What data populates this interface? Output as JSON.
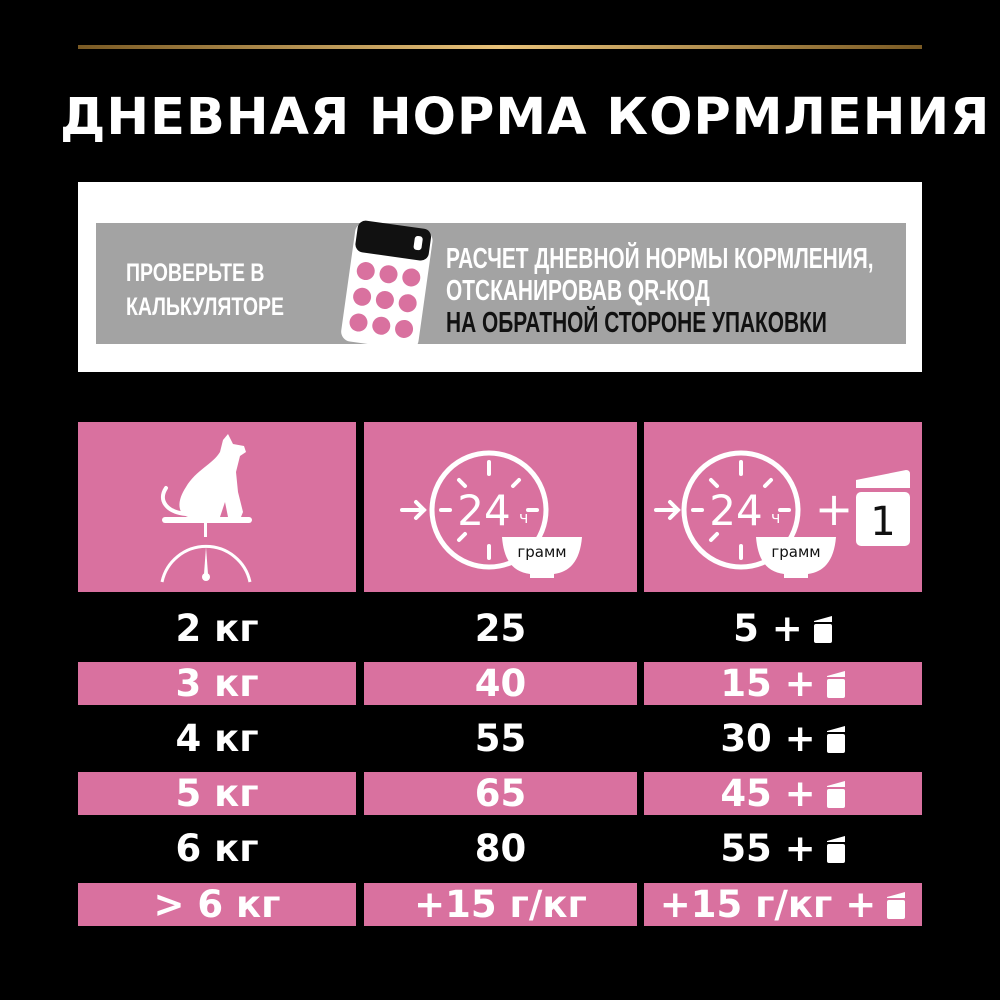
{
  "title": "ДНЕВНАЯ НОРМА КОРМЛЕНИЯ",
  "banner": {
    "left_line1": "ПРОВЕРЬТЕ В",
    "left_line2": "КАЛЬКУЛЯТОРЕ",
    "right_line1": "РАСЧЕТ ДНЕВНОЙ НОРМЫ КОРМЛЕНИЯ,",
    "right_line2": "ОТСКАНИРОВАВ QR-КОД",
    "right_line3": "НА ОБРАТНОЙ СТОРОНЕ УПАКОВКИ",
    "icon": "calculator-icon"
  },
  "header": {
    "col1_icon": "cat-on-scale-icon",
    "col2": {
      "hours": "24",
      "hours_unit": "ч",
      "bowl_label": "грамм"
    },
    "col3": {
      "hours": "24",
      "hours_unit": "ч",
      "bowl_label": "грамм",
      "plus": "+",
      "pouch_count": "1"
    }
  },
  "colors": {
    "pink": "#d9719f",
    "background": "#000000",
    "banner_gray": "#a3a3a3"
  },
  "rows": [
    {
      "weight": "2 кг",
      "dry": "25",
      "mixed": "5 +"
    },
    {
      "weight": "3 кг",
      "dry": "40",
      "mixed": "15 +"
    },
    {
      "weight": "4 кг",
      "dry": "55",
      "mixed": "30 +"
    },
    {
      "weight": "5 кг",
      "dry": "65",
      "mixed": "45 +"
    },
    {
      "weight": "6 кг",
      "dry": "80",
      "mixed": "55 +"
    },
    {
      "weight": "> 6 кг",
      "dry": "+15 г/кг",
      "mixed": "+15 г/кг +"
    }
  ]
}
